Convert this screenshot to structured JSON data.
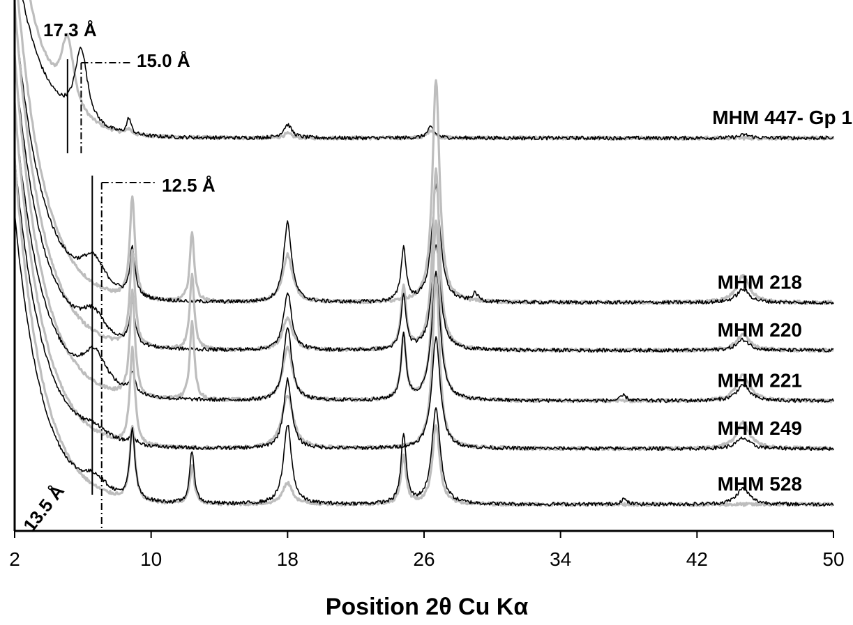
{
  "chart_data": {
    "type": "line",
    "xlabel": "Position 2θ Cu Kα",
    "ylabel": "",
    "xlim": [
      2,
      50
    ],
    "xticks": [
      2,
      10,
      18,
      26,
      34,
      42,
      50
    ],
    "yaxis": "intensity, stacked offsets, no tick labels",
    "grid": false,
    "legend": "none (samples labelled at right end of each pattern)",
    "series_colors": {
      "black": "#000000",
      "gray": "#bdbdbd"
    },
    "samples": [
      {
        "name": "MHM 447- Gp 1",
        "baseline": 0.74,
        "black_peaks": [
          [
            5.9,
            0.14,
            0.45
          ],
          [
            8.7,
            0.03,
            0.15
          ],
          [
            18.0,
            0.025,
            0.3
          ],
          [
            26.4,
            0.02,
            0.25
          ],
          [
            44.8,
            0.006,
            0.4
          ]
        ],
        "gray_peaks": [
          [
            5.1,
            0.13,
            0.45
          ],
          [
            8.7,
            0.01,
            0.15
          ],
          [
            18.0,
            0.008,
            0.3
          ],
          [
            26.4,
            0.015,
            0.25
          ]
        ]
      },
      {
        "name": "MHM 218",
        "baseline": 0.43,
        "black_peaks": [
          [
            6.6,
            0.06,
            0.9
          ],
          [
            8.9,
            0.09,
            0.18
          ],
          [
            18.0,
            0.15,
            0.28
          ],
          [
            24.8,
            0.1,
            0.18
          ],
          [
            26.7,
            0.22,
            0.3
          ],
          [
            29.0,
            0.015,
            0.2
          ],
          [
            44.7,
            0.025,
            0.45
          ]
        ],
        "gray_peaks": [
          [
            8.9,
            0.19,
            0.18
          ],
          [
            12.4,
            0.13,
            0.16
          ],
          [
            18.0,
            0.09,
            0.35
          ],
          [
            26.7,
            0.42,
            0.25
          ],
          [
            44.7,
            0.05,
            0.45
          ]
        ]
      },
      {
        "name": "MHM 220",
        "baseline": 0.34,
        "black_peaks": [
          [
            6.6,
            0.05,
            0.9
          ],
          [
            8.9,
            0.08,
            0.18
          ],
          [
            18.0,
            0.11,
            0.28
          ],
          [
            24.8,
            0.1,
            0.18
          ],
          [
            26.7,
            0.2,
            0.3
          ],
          [
            44.7,
            0.02,
            0.45
          ]
        ],
        "gray_peaks": [
          [
            8.9,
            0.18,
            0.18
          ],
          [
            12.4,
            0.14,
            0.16
          ],
          [
            18.0,
            0.06,
            0.35
          ],
          [
            24.8,
            0.12,
            0.18
          ],
          [
            26.7,
            0.34,
            0.25
          ],
          [
            44.7,
            0.03,
            0.45
          ]
        ]
      },
      {
        "name": "MHM 221",
        "baseline": 0.245,
        "black_peaks": [
          [
            6.7,
            0.07,
            0.9
          ],
          [
            8.9,
            0.04,
            0.18
          ],
          [
            18.0,
            0.14,
            0.28
          ],
          [
            24.8,
            0.12,
            0.18
          ],
          [
            26.7,
            0.24,
            0.3
          ],
          [
            37.7,
            0.01,
            0.2
          ],
          [
            44.7,
            0.03,
            0.45
          ]
        ],
        "gray_peaks": [
          [
            8.9,
            0.2,
            0.18
          ],
          [
            12.4,
            0.15,
            0.16
          ],
          [
            18.0,
            0.1,
            0.35
          ],
          [
            24.8,
            0.12,
            0.18
          ],
          [
            26.7,
            0.34,
            0.25
          ],
          [
            44.7,
            0.05,
            0.45
          ]
        ]
      },
      {
        "name": "MHM 249",
        "baseline": 0.155,
        "black_peaks": [
          [
            6.7,
            0.02,
            0.9
          ],
          [
            8.9,
            0.02,
            0.18
          ],
          [
            18.0,
            0.13,
            0.28
          ],
          [
            26.7,
            0.21,
            0.3
          ],
          [
            44.7,
            0.02,
            0.45
          ]
        ],
        "gray_peaks": [
          [
            8.9,
            0.18,
            0.18
          ],
          [
            18.0,
            0.1,
            0.4
          ],
          [
            26.7,
            0.32,
            0.25
          ],
          [
            44.7,
            0.05,
            0.45
          ]
        ]
      },
      {
        "name": "MHM 528",
        "baseline": 0.05,
        "black_peaks": [
          [
            6.7,
            0.03,
            0.9
          ],
          [
            8.9,
            0.13,
            0.18
          ],
          [
            12.4,
            0.1,
            0.16
          ],
          [
            18.0,
            0.15,
            0.28
          ],
          [
            24.8,
            0.13,
            0.18
          ],
          [
            26.7,
            0.18,
            0.3
          ],
          [
            37.7,
            0.01,
            0.2
          ],
          [
            44.7,
            0.03,
            0.45
          ]
        ],
        "gray_peaks": [
          [
            8.9,
            0.14,
            0.18
          ],
          [
            12.4,
            0.07,
            0.16
          ],
          [
            18.0,
            0.04,
            0.35
          ],
          [
            24.8,
            0.09,
            0.18
          ],
          [
            26.7,
            0.15,
            0.25
          ]
        ]
      }
    ],
    "annotations": [
      {
        "label": "17.3 Å",
        "x": 5.1,
        "style": "solid"
      },
      {
        "label": "15.0 Å",
        "x": 5.9,
        "style": "dash-dot"
      },
      {
        "label": "13.5 Å",
        "x": 6.55,
        "style": "solid"
      },
      {
        "label": "12.5 Å",
        "x": 7.1,
        "style": "dash-dot"
      }
    ]
  }
}
